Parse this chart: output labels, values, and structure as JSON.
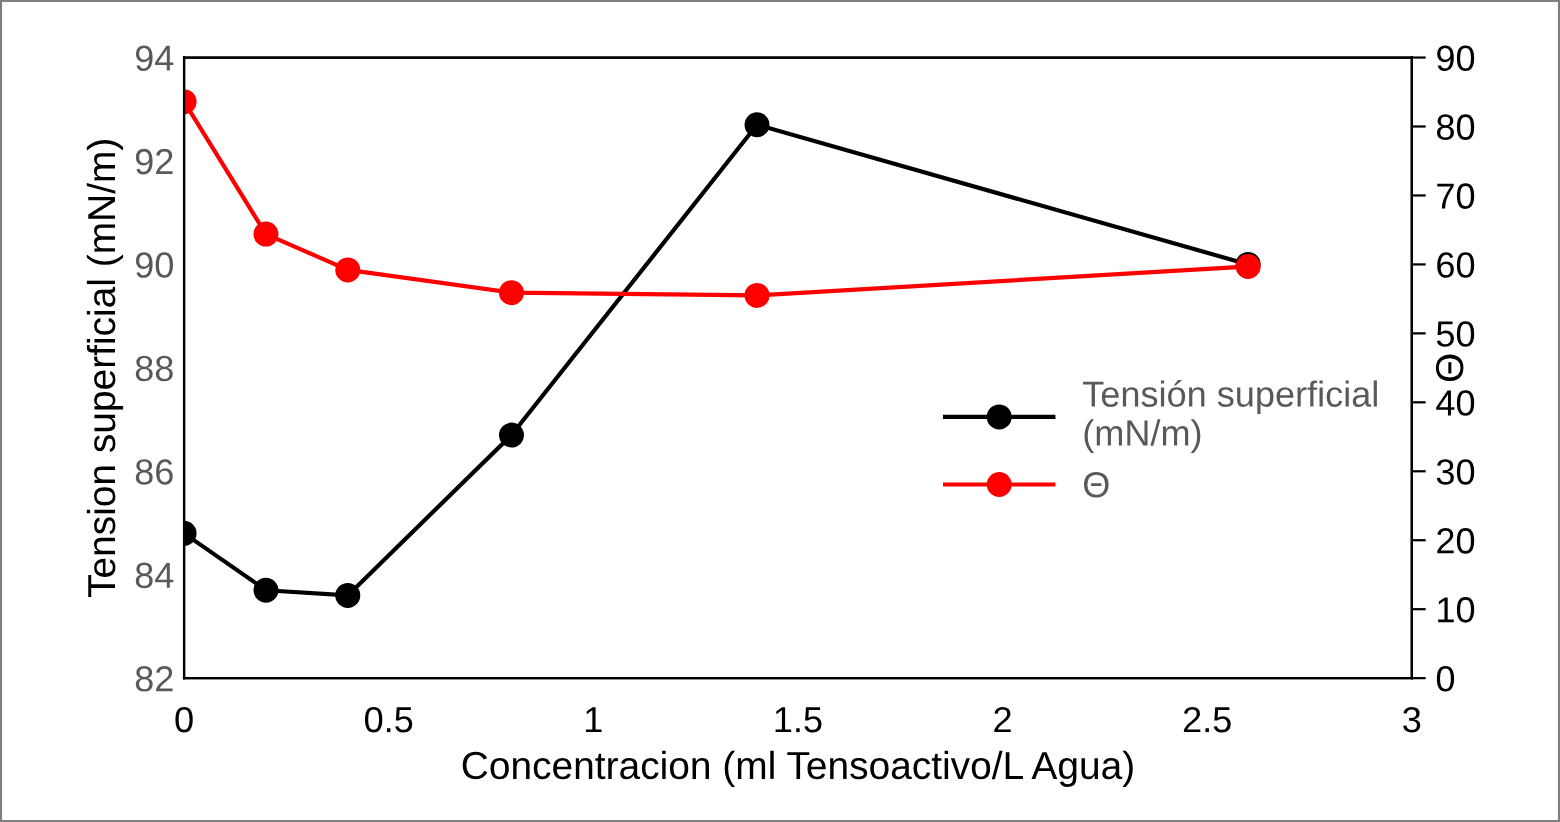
{
  "chart_data": {
    "type": "line",
    "xlabel": "Concentracion (ml Tensoactivo/L Agua)",
    "ylabel": "Tension superficial (mN/m)",
    "y2label": "Θ",
    "x": [
      0,
      0.2,
      0.4,
      0.8,
      1.4,
      2.6
    ],
    "series": [
      {
        "name": "Tensión superficial\n(mN/m)",
        "color": "#000000",
        "values": [
          84.8,
          83.7,
          83.6,
          86.7,
          92.7,
          90.0
        ]
      },
      {
        "name": "Θ",
        "color": "#ff0000",
        "axis": "y2",
        "values": [
          83.6,
          64.4,
          59.2,
          55.9,
          55.5,
          59.7
        ]
      }
    ],
    "xlim": [
      0,
      3
    ],
    "xticks": [
      0,
      0.5,
      1,
      1.5,
      2,
      2.5,
      3
    ],
    "ylim": [
      82,
      94
    ],
    "yticks": [
      82,
      84,
      86,
      88,
      90,
      92,
      94
    ],
    "y2lim": [
      0,
      90
    ],
    "y2ticks": [
      0,
      10,
      20,
      30,
      40,
      50,
      60,
      70,
      80,
      90
    ],
    "marker": "circle",
    "line_style": "solid",
    "grid": false,
    "legend": "right"
  }
}
